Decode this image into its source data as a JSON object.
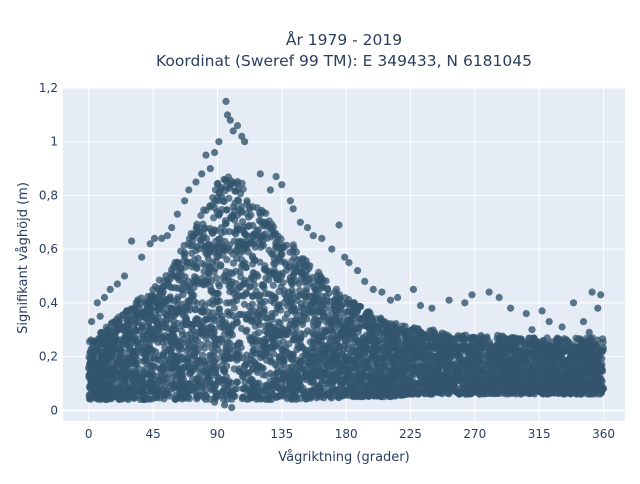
{
  "chart_data": {
    "type": "scatter",
    "title": [
      "År 1979 - 2019",
      "Koordinat (Sweref 99 TM): E 349433, N 6181045"
    ],
    "xlabel": "Vågriktning (grader)",
    "ylabel": "Signifikant våghöjd (m)",
    "xlim": [
      -18,
      375
    ],
    "ylim": [
      -0.04,
      1.2
    ],
    "x_ticks": [
      0,
      45,
      90,
      135,
      180,
      225,
      270,
      315,
      360
    ],
    "x_tick_labels": [
      "0",
      "45",
      "90",
      "135",
      "180",
      "225",
      "270",
      "315",
      "360"
    ],
    "y_ticks": [
      0,
      0.2,
      0.4,
      0.6,
      0.8,
      1,
      1.2
    ],
    "y_tick_labels": [
      "0",
      "0,2",
      "0,4",
      "0,6",
      "0,8",
      "1",
      "1,2"
    ],
    "grid": true,
    "marker_color": "#33556d",
    "background_color": "#e5ecf6",
    "envelope": {
      "x": [
        0,
        15,
        30,
        45,
        60,
        75,
        90,
        100,
        105,
        120,
        135,
        150,
        165,
        180,
        195,
        210,
        225,
        240,
        255,
        270,
        285,
        300,
        315,
        330,
        345,
        360
      ],
      "upper": [
        0.26,
        0.32,
        0.4,
        0.46,
        0.55,
        0.7,
        0.85,
        0.88,
        0.86,
        0.76,
        0.66,
        0.58,
        0.49,
        0.42,
        0.37,
        0.33,
        0.31,
        0.3,
        0.28,
        0.28,
        0.28,
        0.27,
        0.27,
        0.27,
        0.27,
        0.27
      ],
      "lower": [
        0.04,
        0.04,
        0.04,
        0.04,
        0.04,
        0.04,
        0.04,
        0.04,
        0.04,
        0.04,
        0.04,
        0.04,
        0.04,
        0.05,
        0.05,
        0.05,
        0.06,
        0.06,
        0.06,
        0.06,
        0.06,
        0.06,
        0.06,
        0.06,
        0.06,
        0.06
      ]
    },
    "outliers": [
      {
        "x": 96,
        "y": 1.15
      },
      {
        "x": 97,
        "y": 1.1
      },
      {
        "x": 99,
        "y": 1.08
      },
      {
        "x": 101,
        "y": 1.04
      },
      {
        "x": 104,
        "y": 1.06
      },
      {
        "x": 107,
        "y": 1.02
      },
      {
        "x": 109,
        "y": 1.0
      },
      {
        "x": 91,
        "y": 1.0
      },
      {
        "x": 88,
        "y": 0.96
      },
      {
        "x": 82,
        "y": 0.95
      },
      {
        "x": 85,
        "y": 0.9
      },
      {
        "x": 79,
        "y": 0.88
      },
      {
        "x": 75,
        "y": 0.85
      },
      {
        "x": 70,
        "y": 0.82
      },
      {
        "x": 67,
        "y": 0.78
      },
      {
        "x": 62,
        "y": 0.73
      },
      {
        "x": 58,
        "y": 0.68
      },
      {
        "x": 55,
        "y": 0.65
      },
      {
        "x": 51,
        "y": 0.64
      },
      {
        "x": 46,
        "y": 0.64
      },
      {
        "x": 43,
        "y": 0.62
      },
      {
        "x": 30,
        "y": 0.63
      },
      {
        "x": 37,
        "y": 0.57
      },
      {
        "x": 25,
        "y": 0.5
      },
      {
        "x": 20,
        "y": 0.47
      },
      {
        "x": 15,
        "y": 0.45
      },
      {
        "x": 11,
        "y": 0.42
      },
      {
        "x": 6,
        "y": 0.4
      },
      {
        "x": 2,
        "y": 0.33
      },
      {
        "x": 8,
        "y": 0.35
      },
      {
        "x": 120,
        "y": 0.88
      },
      {
        "x": 127,
        "y": 0.82
      },
      {
        "x": 131,
        "y": 0.87
      },
      {
        "x": 135,
        "y": 0.84
      },
      {
        "x": 141,
        "y": 0.78
      },
      {
        "x": 143,
        "y": 0.75
      },
      {
        "x": 148,
        "y": 0.7
      },
      {
        "x": 153,
        "y": 0.68
      },
      {
        "x": 157,
        "y": 0.65
      },
      {
        "x": 163,
        "y": 0.64
      },
      {
        "x": 170,
        "y": 0.6
      },
      {
        "x": 175,
        "y": 0.69
      },
      {
        "x": 179,
        "y": 0.57
      },
      {
        "x": 182,
        "y": 0.55
      },
      {
        "x": 188,
        "y": 0.52
      },
      {
        "x": 193,
        "y": 0.48
      },
      {
        "x": 199,
        "y": 0.45
      },
      {
        "x": 205,
        "y": 0.44
      },
      {
        "x": 211,
        "y": 0.41
      },
      {
        "x": 216,
        "y": 0.42
      },
      {
        "x": 227,
        "y": 0.45
      },
      {
        "x": 232,
        "y": 0.39
      },
      {
        "x": 240,
        "y": 0.38
      },
      {
        "x": 252,
        "y": 0.41
      },
      {
        "x": 263,
        "y": 0.4
      },
      {
        "x": 268,
        "y": 0.43
      },
      {
        "x": 280,
        "y": 0.44
      },
      {
        "x": 287,
        "y": 0.42
      },
      {
        "x": 295,
        "y": 0.38
      },
      {
        "x": 306,
        "y": 0.36
      },
      {
        "x": 317,
        "y": 0.37
      },
      {
        "x": 322,
        "y": 0.33
      },
      {
        "x": 331,
        "y": 0.31
      },
      {
        "x": 339,
        "y": 0.4
      },
      {
        "x": 346,
        "y": 0.33
      },
      {
        "x": 352,
        "y": 0.44
      },
      {
        "x": 356,
        "y": 0.38
      },
      {
        "x": 358,
        "y": 0.43
      },
      {
        "x": 350,
        "y": 0.29
      },
      {
        "x": 310,
        "y": 0.3
      },
      {
        "x": 95,
        "y": 0.02
      },
      {
        "x": 100,
        "y": 0.01
      },
      {
        "x": 88,
        "y": 0.03
      }
    ]
  }
}
